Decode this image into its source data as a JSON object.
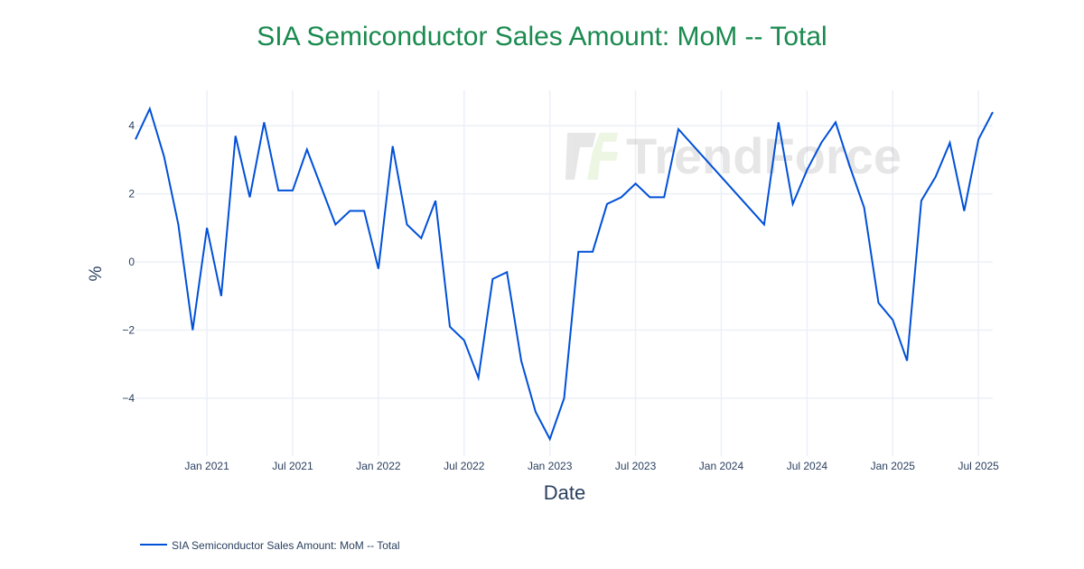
{
  "chart_data": {
    "type": "line",
    "title": "SIA Semiconductor Sales Amount: MoM -- Total",
    "xlabel": "Date",
    "ylabel": "%",
    "xlim": [
      "2020-08",
      "2025-08"
    ],
    "ylim": [
      -5.7,
      5.04
    ],
    "x_ticks": [
      {
        "date": "2021-01",
        "label": "Jan 2021"
      },
      {
        "date": "2021-07",
        "label": "Jul 2021"
      },
      {
        "date": "2022-01",
        "label": "Jan 2022"
      },
      {
        "date": "2022-07",
        "label": "Jul 2022"
      },
      {
        "date": "2023-01",
        "label": "Jan 2023"
      },
      {
        "date": "2023-07",
        "label": "Jul 2023"
      },
      {
        "date": "2024-01",
        "label": "Jan 2024"
      },
      {
        "date": "2024-07",
        "label": "Jul 2024"
      },
      {
        "date": "2025-01",
        "label": "Jan 2025"
      },
      {
        "date": "2025-07",
        "label": "Jul 2025"
      }
    ],
    "y_ticks": [
      {
        "value": 4,
        "label": "4"
      },
      {
        "value": 2,
        "label": "2"
      },
      {
        "value": 0,
        "label": "0"
      },
      {
        "value": -2,
        "label": "−2"
      },
      {
        "value": -4,
        "label": "−4"
      }
    ],
    "grid": true,
    "legend_position": "bottom-left",
    "series": [
      {
        "name": "SIA Semiconductor Sales Amount: MoM -- Total",
        "color": "#0050d8",
        "x": [
          "2020-08",
          "2020-09",
          "2020-10",
          "2020-11",
          "2020-12",
          "2021-01",
          "2021-02",
          "2021-03",
          "2021-04",
          "2021-05",
          "2021-06",
          "2021-07",
          "2021-08",
          "2021-09",
          "2021-10",
          "2021-11",
          "2021-12",
          "2022-01",
          "2022-02",
          "2022-03",
          "2022-04",
          "2022-05",
          "2022-06",
          "2022-07",
          "2022-08",
          "2022-09",
          "2022-10",
          "2022-11",
          "2022-12",
          "2023-01",
          "2023-02",
          "2023-03",
          "2023-04",
          "2023-05",
          "2023-06",
          "2023-07",
          "2023-08",
          "2023-09",
          "2023-10",
          "2024-04",
          "2024-05",
          "2024-06",
          "2024-07",
          "2024-08",
          "2024-09",
          "2024-10",
          "2024-11",
          "2024-12",
          "2025-01",
          "2025-02",
          "2025-03",
          "2025-04",
          "2025-05",
          "2025-06",
          "2025-07",
          "2025-08"
        ],
        "y": [
          3.6,
          4.5,
          3.1,
          1.1,
          -2.0,
          1.0,
          -1.0,
          3.7,
          1.9,
          4.1,
          2.1,
          2.1,
          3.3,
          2.2,
          1.1,
          1.5,
          1.5,
          -0.2,
          3.4,
          1.1,
          0.7,
          1.8,
          -1.9,
          -2.3,
          -3.4,
          -0.5,
          -0.3,
          -2.9,
          -4.4,
          -5.2,
          -4.0,
          0.3,
          0.3,
          1.7,
          1.9,
          2.3,
          1.9,
          1.9,
          3.9,
          1.1,
          4.1,
          1.7,
          2.7,
          3.5,
          4.1,
          2.8,
          1.6,
          -1.2,
          -1.7,
          -2.9,
          1.8,
          2.5,
          3.5,
          1.5,
          3.6,
          4.4
        ]
      }
    ],
    "title_color": "#1a8a4f",
    "watermark": "TrendForce"
  }
}
